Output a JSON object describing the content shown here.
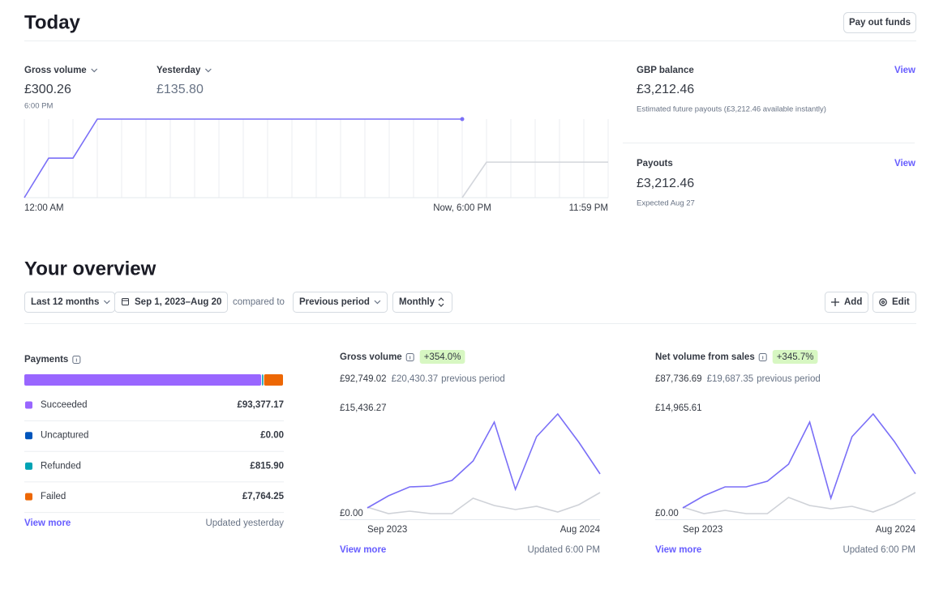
{
  "header": {
    "title": "Today",
    "button": "Pay out funds"
  },
  "today": {
    "gross_amount": "£300.26",
    "time": "6:00 PM",
    "yesterday_amount": "£135.80"
  },
  "balance": {
    "title": "GBP balance",
    "link": "View",
    "amount": "£3,212.46",
    "note": "Estimated future payouts (£3,212.46 available instantly)"
  },
  "payouts": {
    "title": "Payouts",
    "link": "View",
    "amount": "£3,212.46",
    "note": "Expected Aug 27"
  },
  "overview": {
    "title": "Your overview",
    "period": "Last 12 months",
    "dates": "Sep 1, 2023–Aug 20",
    "compared": "compared to",
    "comparison": "Previous period",
    "interval": "Monthly",
    "add": "Add",
    "edit": "Edit"
  },
  "chart_data": [
    {
      "type": "line",
      "x": [
        0,
        1,
        2,
        3,
        4,
        5,
        6,
        7,
        8,
        9,
        10,
        11,
        12,
        13,
        14,
        15,
        16,
        17,
        18,
        19,
        20,
        21,
        22,
        23,
        24
      ],
      "xlim": [
        0,
        24
      ],
      "xticks": [
        {
          "value": 0,
          "label": "12:00 AM"
        },
        {
          "value": 18,
          "label": "Now, 6:00 PM"
        },
        {
          "value": 24,
          "label": "11:59 PM"
        }
      ],
      "ylim": [
        0,
        300.26
      ],
      "xgrid": true,
      "series": [
        {
          "name": "Gross volume",
          "color": "#7a6ff7",
          "values": [
            0,
            151,
            151,
            300.26,
            300.26,
            300.26,
            300.26,
            300.26,
            300.26,
            300.26,
            300.26,
            300.26,
            300.26,
            300.26,
            300.26,
            300.26,
            300.26,
            300.26,
            300.26,
            null,
            null,
            null,
            null,
            null,
            null
          ]
        },
        {
          "name": "Yesterday",
          "color": "#d3d6dc",
          "values": [
            null,
            null,
            null,
            null,
            null,
            null,
            null,
            null,
            null,
            null,
            null,
            null,
            null,
            null,
            null,
            null,
            null,
            null,
            0,
            135.8,
            135.8,
            135.8,
            135.8,
            135.8,
            135.8
          ]
        }
      ]
    },
    {
      "type": "stacked-bar",
      "title": "Payments",
      "categories": [
        "Succeeded",
        "Uncaptured",
        "Refunded",
        "Failed"
      ],
      "values": [
        93377.17,
        0,
        815.9,
        7764.25
      ],
      "value_labels": [
        "£93,377.17",
        "£0.00",
        "£815.90",
        "£7,764.25"
      ],
      "colors": [
        "#9966ff",
        "#0055bc",
        "#00a3b4",
        "#ed6704"
      ],
      "link": "View more",
      "updated": "Updated yesterday"
    },
    {
      "type": "line",
      "title": "Gross volume",
      "change": "+354.0%",
      "total": "£92,749.02",
      "previous": "£20,430.37",
      "previous_note": "previous period",
      "categories": [
        "Sep 2023",
        null,
        null,
        null,
        null,
        null,
        null,
        null,
        null,
        null,
        null,
        "Aug 2024"
      ],
      "ylim": [
        0,
        15436.27
      ],
      "yticks": [
        {
          "value": 0,
          "label": "£0.00"
        },
        {
          "value": 15436.27,
          "label": "£15,436.27"
        }
      ],
      "series": [
        {
          "color": "#7a6ff7",
          "values": [
            831,
            2612,
            3918,
            4037,
            4868,
            7718,
            13417,
            3562,
            11280,
            14605,
            10449,
            5818
          ]
        },
        {
          "color": "#cfd2d8",
          "values": [
            950,
            0,
            356,
            0,
            0,
            2256,
            1187,
            594,
            1069,
            237,
            1306,
            3087
          ]
        }
      ],
      "link": "View more",
      "updated": "Updated 6:00 PM"
    },
    {
      "type": "line",
      "title": "Net volume from sales",
      "change": "+345.7%",
      "total": "£87,736.69",
      "previous": "£19,687.35",
      "previous_note": "previous period",
      "categories": [
        "Sep 2023",
        null,
        null,
        null,
        null,
        null,
        null,
        null,
        null,
        null,
        null,
        "Aug 2024"
      ],
      "ylim": [
        0,
        14965.61
      ],
      "yticks": [
        {
          "value": 0,
          "label": "£0.00"
        },
        {
          "value": 14965.61,
          "label": "£14,965.61"
        }
      ],
      "series": [
        {
          "color": "#7a6ff7",
          "values": [
            806,
            2533,
            3799,
            3799,
            4605,
            7022,
            13009,
            2187,
            10936,
            14160,
            10246,
            5641
          ]
        },
        {
          "color": "#cfd2d8",
          "values": [
            921,
            0,
            460,
            0,
            0,
            2302,
            1151,
            691,
            1036,
            230,
            1381,
            2993
          ]
        }
      ],
      "link": "View more",
      "updated": "Updated 6:00 PM"
    }
  ]
}
